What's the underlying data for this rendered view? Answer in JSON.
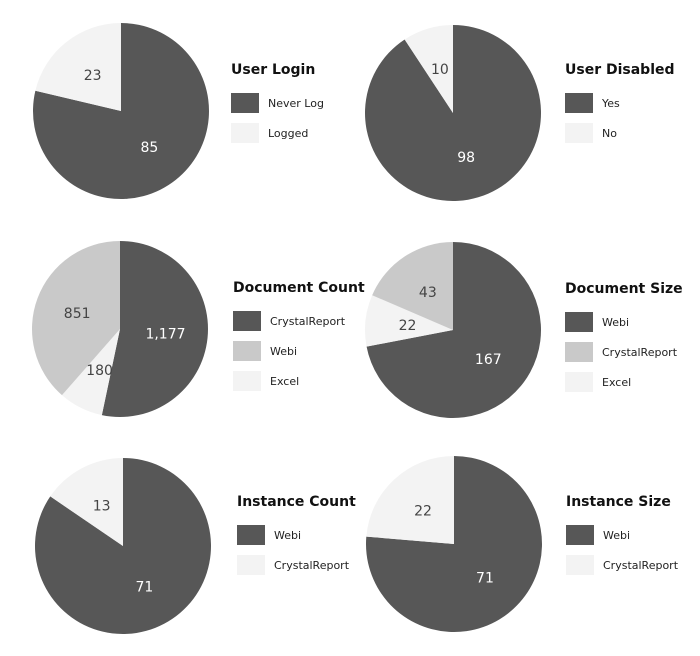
{
  "colors": {
    "dark": "#575757",
    "mid": "#c9c9c9",
    "light": "#f3f3f3"
  },
  "chart_data": [
    {
      "type": "pie",
      "title": "User Login",
      "legend": [
        {
          "name": "Never Log",
          "color": "#575757"
        },
        {
          "name": "Logged",
          "color": "#f3f3f3"
        }
      ],
      "slices": [
        {
          "name": "Never Log",
          "value": 85,
          "label": "85",
          "color": "#575757"
        },
        {
          "name": "Logged",
          "value": 23,
          "label": "23",
          "color": "#f3f3f3"
        }
      ]
    },
    {
      "type": "pie",
      "title": "User Disabled",
      "legend": [
        {
          "name": "Yes",
          "color": "#575757"
        },
        {
          "name": "No",
          "color": "#f3f3f3"
        }
      ],
      "slices": [
        {
          "name": "Yes",
          "value": 98,
          "label": "98",
          "color": "#575757"
        },
        {
          "name": "No",
          "value": 10,
          "label": "10",
          "color": "#f3f3f3"
        }
      ]
    },
    {
      "type": "pie",
      "title": "Document Count",
      "legend": [
        {
          "name": "CrystalReport",
          "color": "#575757"
        },
        {
          "name": "Webi",
          "color": "#c9c9c9"
        },
        {
          "name": "Excel",
          "color": "#f3f3f3"
        }
      ],
      "slices": [
        {
          "name": "CrystalReport",
          "value": 1177,
          "label": "1,177",
          "color": "#575757"
        },
        {
          "name": "Excel",
          "value": 180,
          "label": "180",
          "color": "#f3f3f3"
        },
        {
          "name": "Webi",
          "value": 851,
          "label": "851",
          "color": "#c9c9c9"
        }
      ]
    },
    {
      "type": "pie",
      "title": "Document Size",
      "legend": [
        {
          "name": "Webi",
          "color": "#575757"
        },
        {
          "name": "CrystalReport",
          "color": "#c9c9c9"
        },
        {
          "name": "Excel",
          "color": "#f3f3f3"
        }
      ],
      "slices": [
        {
          "name": "Webi",
          "value": 167,
          "label": "167",
          "color": "#575757"
        },
        {
          "name": "Excel",
          "value": 22,
          "label": "22",
          "color": "#f3f3f3"
        },
        {
          "name": "CrystalReport",
          "value": 43,
          "label": "43",
          "color": "#c9c9c9"
        }
      ]
    },
    {
      "type": "pie",
      "title": "Instance Count",
      "legend": [
        {
          "name": "Webi",
          "color": "#575757"
        },
        {
          "name": "CrystalReport",
          "color": "#f3f3f3"
        }
      ],
      "slices": [
        {
          "name": "Webi",
          "value": 71,
          "label": "71",
          "color": "#575757"
        },
        {
          "name": "CrystalReport",
          "value": 13,
          "label": "13",
          "color": "#f3f3f3"
        }
      ]
    },
    {
      "type": "pie",
      "title": "Instance Size",
      "legend": [
        {
          "name": "Webi",
          "color": "#575757"
        },
        {
          "name": "CrystalReport",
          "color": "#f3f3f3"
        }
      ],
      "slices": [
        {
          "name": "Webi",
          "value": 71,
          "label": "71",
          "color": "#575757"
        },
        {
          "name": "CrystalReport",
          "value": 22,
          "label": "22",
          "color": "#f3f3f3"
        }
      ]
    }
  ]
}
